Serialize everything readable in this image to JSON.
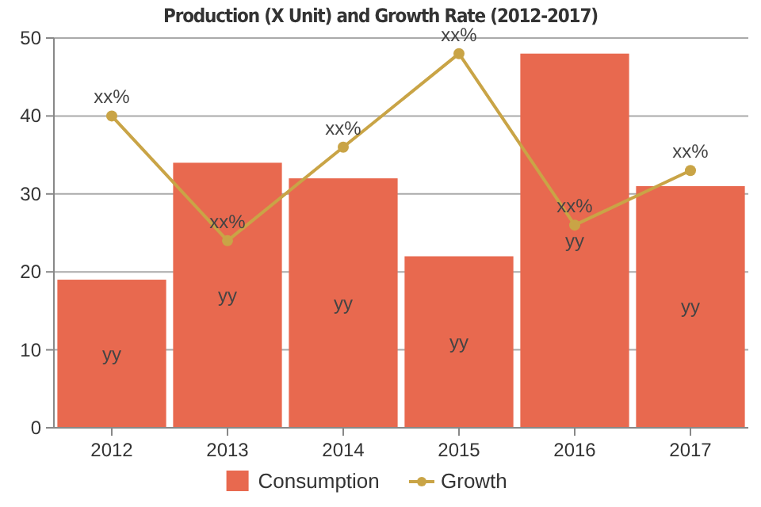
{
  "chart_data": {
    "type": "bar",
    "title": "Production (X Unit) and Growth Rate (2012-2017)",
    "categories": [
      "2012",
      "2013",
      "2014",
      "2015",
      "2016",
      "2017"
    ],
    "series": [
      {
        "name": "Consumption",
        "color": "#e8694f",
        "values": [
          19,
          34,
          32,
          22,
          48,
          31
        ],
        "value_labels": [
          "yy",
          "yy",
          "yy",
          "yy",
          "yy",
          "yy"
        ]
      },
      {
        "name": "Growth",
        "type": "line",
        "color": "#c9a446",
        "values": [
          40,
          24,
          36,
          48,
          26,
          33
        ],
        "value_labels": [
          "xx%",
          "xx%",
          "xx%",
          "xx%",
          "xx%",
          "xx%"
        ],
        "marker": "circle"
      }
    ],
    "ylim": [
      0,
      50
    ],
    "yticks": [
      0,
      10,
      20,
      30,
      40,
      50
    ],
    "grid": "y",
    "legend": "bottom"
  }
}
